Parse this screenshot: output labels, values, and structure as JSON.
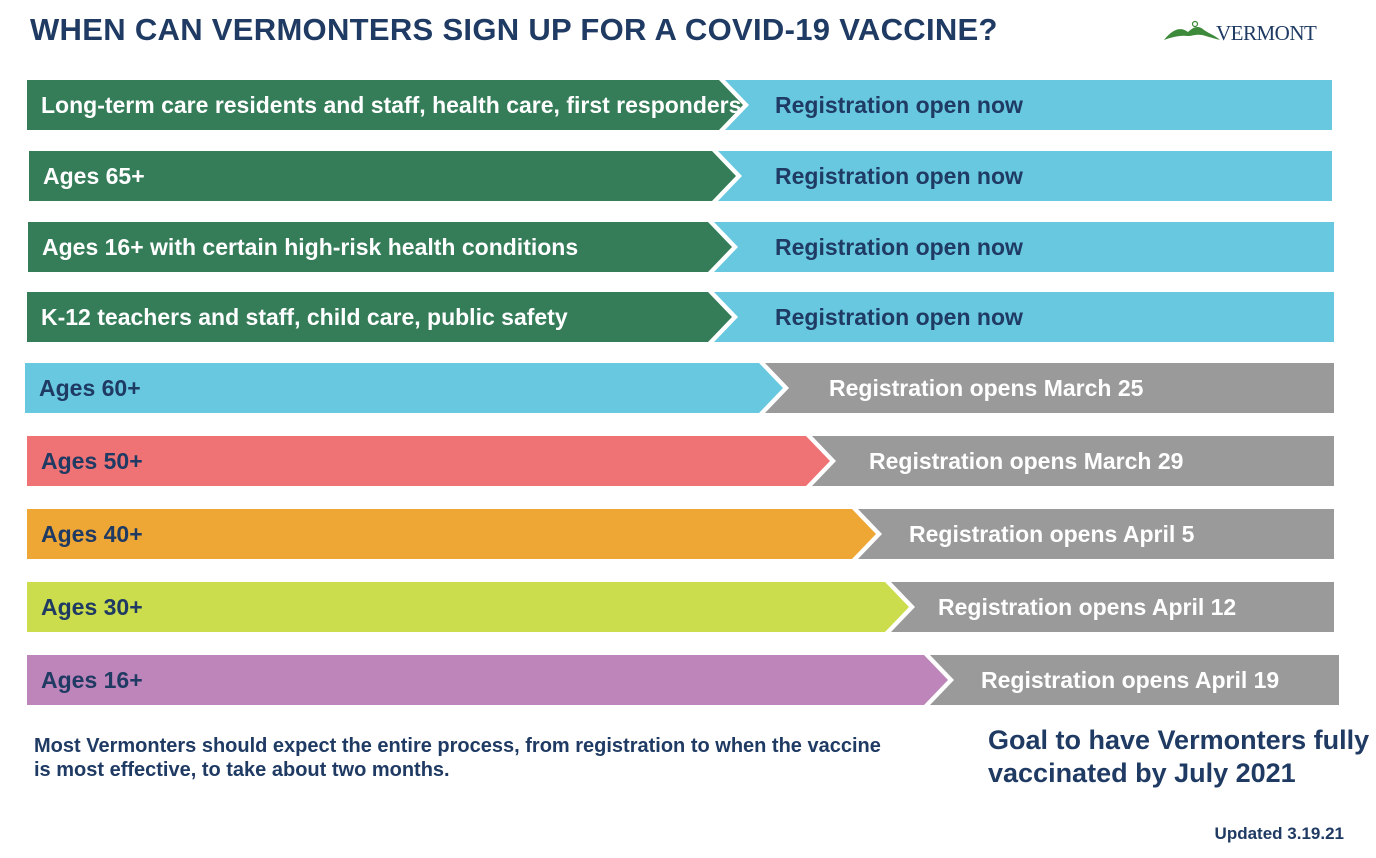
{
  "title": "WHEN CAN VERMONTERS SIGN UP FOR A COVID-19 VACCINE?",
  "logo": {
    "text": "VERMONT",
    "icon": "vermont-logo-icon"
  },
  "colors": {
    "dark_navy": "#1f3a63",
    "green": "#357d59",
    "light_blue": "#67c8e0",
    "gray": "#9a9a9a",
    "coral": "#ef7274",
    "orange": "#eea734",
    "lime": "#cbdc4d",
    "purple": "#bd85b9"
  },
  "groups": [
    {
      "label": "Long-term care residents and staff, health care, first responders",
      "status": "Registration open now",
      "state": "open"
    },
    {
      "label": "Ages 65+",
      "status": "Registration open now",
      "state": "open"
    },
    {
      "label": "Ages 16+ with certain high-risk health conditions",
      "status": "Registration open now",
      "state": "open"
    },
    {
      "label": "K-12 teachers and staff, child care, public safety",
      "status": "Registration open now",
      "state": "open"
    },
    {
      "label": "Ages 60+",
      "status": "Registration opens March 25",
      "state": "upcoming"
    },
    {
      "label": "Ages 50+",
      "status": "Registration opens March 29",
      "state": "upcoming"
    },
    {
      "label": "Ages 40+",
      "status": "Registration opens April 5",
      "state": "upcoming"
    },
    {
      "label": "Ages 30+",
      "status": "Registration opens April 12",
      "state": "upcoming"
    },
    {
      "label": "Ages 16+",
      "status": "Registration opens April 19",
      "state": "upcoming"
    }
  ],
  "footnote": "Most Vermonters should expect the entire process, from registration to when the vaccine is most effective, to take about two months.",
  "goal": "Goal to have Vermonters fully vaccinated by July 2021",
  "updated": "Updated 3.19.21"
}
